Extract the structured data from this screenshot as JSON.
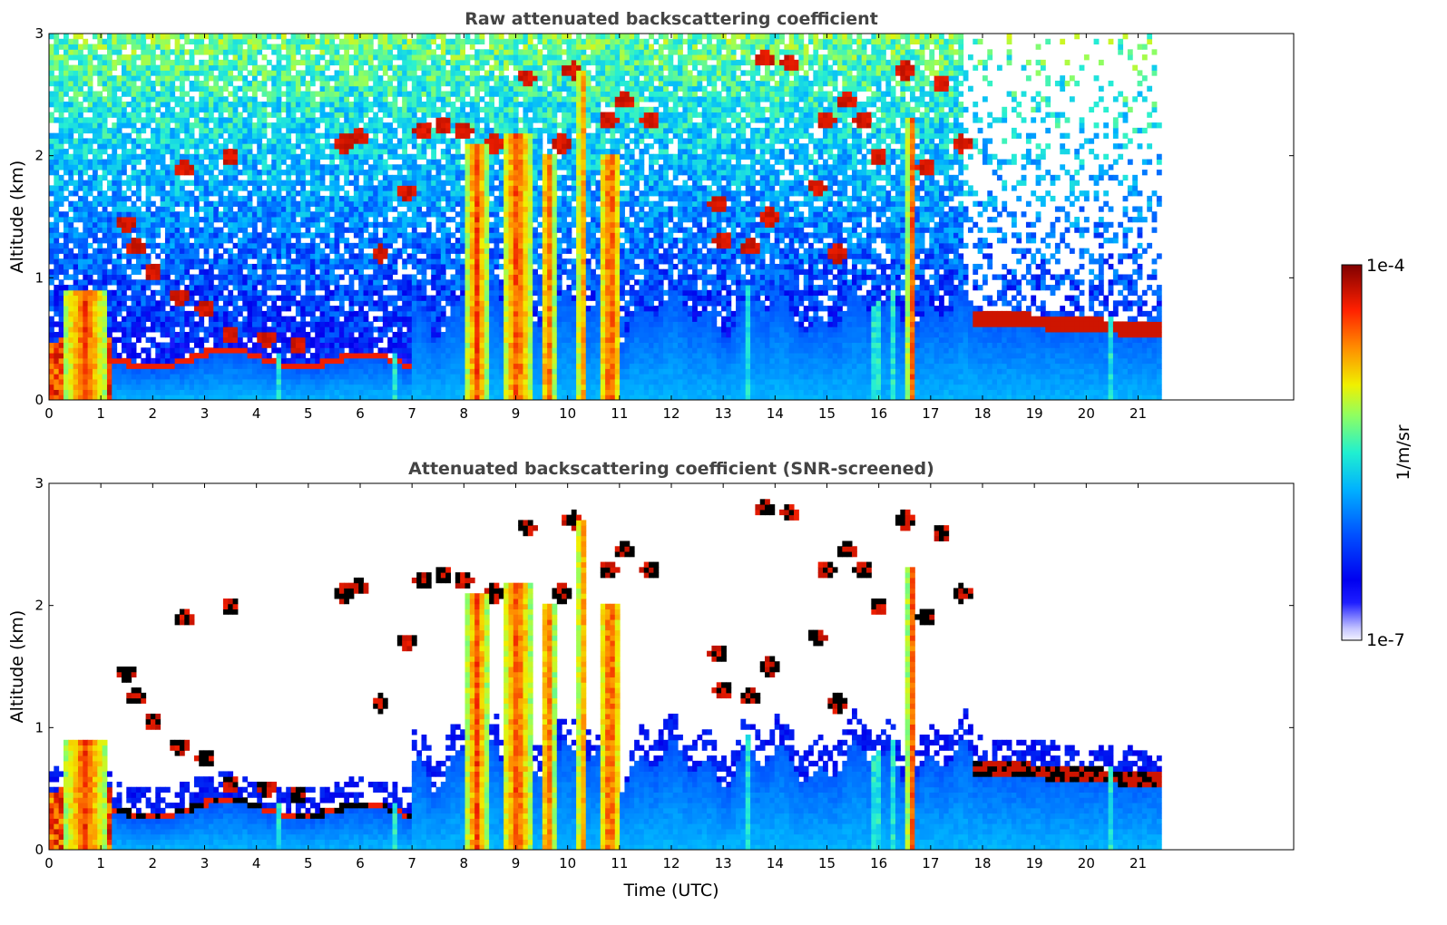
{
  "chart_data": [
    {
      "type": "heatmap",
      "title": "Raw attenuated backscattering coefficient",
      "xlabel": "",
      "ylabel": "Altitude (km)",
      "xlim": [
        0,
        24
      ],
      "ylim": [
        0,
        3
      ],
      "x_ticks": [
        "0",
        "1",
        "2",
        "3",
        "4",
        "5",
        "6",
        "7",
        "8",
        "9",
        "10",
        "11",
        "12",
        "13",
        "14",
        "15",
        "16",
        "17",
        "18",
        "19",
        "20",
        "21"
      ],
      "y_ticks": [
        "0",
        "1",
        "2",
        "3"
      ],
      "data_extent_hours": [
        0,
        21.45
      ],
      "screened": false,
      "grid": false
    },
    {
      "type": "heatmap",
      "title": "Attenuated backscattering coefficient (SNR-screened)",
      "xlabel": "Time (UTC)",
      "ylabel": "Altitude (km)",
      "xlim": [
        0,
        24
      ],
      "ylim": [
        0,
        3
      ],
      "x_ticks": [
        "0",
        "1",
        "2",
        "3",
        "4",
        "5",
        "6",
        "7",
        "8",
        "9",
        "10",
        "11",
        "12",
        "13",
        "14",
        "15",
        "16",
        "17",
        "18",
        "19",
        "20",
        "21"
      ],
      "y_ticks": [
        "0",
        "1",
        "2",
        "3"
      ],
      "data_extent_hours": [
        0,
        21.45
      ],
      "screened": true,
      "grid": false
    }
  ],
  "colorbar": {
    "label": "1/m/sr",
    "max_label": "1e-4",
    "min_label": "1e-7",
    "scale": "log",
    "colormap": "jet"
  }
}
